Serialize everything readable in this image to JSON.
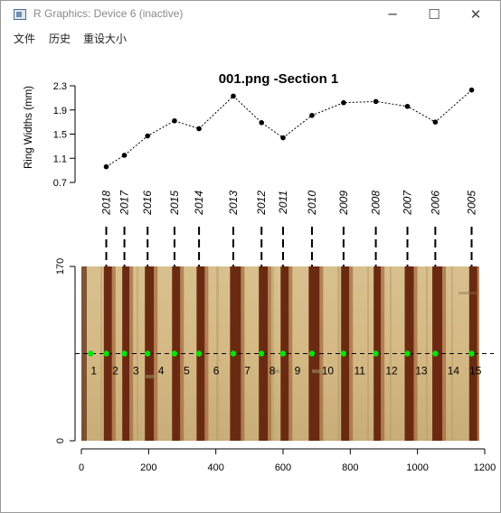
{
  "window": {
    "title": "R Graphics: Device 6 (inactive)",
    "icon": "r-graphics-window-icon",
    "controls": {
      "minimize": "─",
      "maximize": "☐",
      "close": "✕"
    }
  },
  "menu": [
    "文件",
    "历史",
    "重设大小"
  ],
  "chart_data": [
    {
      "type": "line",
      "title": "001.png -Section 1",
      "xlabel": "",
      "ylabel": "Ring Widths (mm)",
      "ylim": [
        0.7,
        2.3
      ],
      "yticks": [
        "0.7",
        "1.1",
        "1.5",
        "1.9",
        "2.3"
      ],
      "line_style": "dotted",
      "x": [
        "2018",
        "2017",
        "2016",
        "2015",
        "2014",
        "2013",
        "2012",
        "2011",
        "2010",
        "2009",
        "2008",
        "2007",
        "2006",
        "2005"
      ],
      "values": [
        0.96,
        1.15,
        1.47,
        1.72,
        1.59,
        2.13,
        1.69,
        1.44,
        1.81,
        2.02,
        2.04,
        1.96,
        1.7,
        2.23
      ],
      "year_labels": [
        "2018",
        "2017",
        "2016",
        "2015",
        "2014",
        "2013",
        "2012",
        "2011",
        "2010",
        "2009",
        "2008",
        "2007",
        "2006",
        "2005"
      ]
    },
    {
      "type": "scatter",
      "xlabel": "",
      "ylabel": "",
      "xlim": [
        0,
        1200
      ],
      "ylim": [
        0,
        170
      ],
      "xticks": [
        "0",
        "200",
        "400",
        "600",
        "800",
        "1000",
        "1200"
      ],
      "yticks": [
        "0",
        "170"
      ],
      "path_y": 85,
      "marker_color": "#00e600",
      "points_x": [
        28,
        74,
        128,
        197,
        277,
        350,
        452,
        536,
        600,
        686,
        780,
        876,
        970,
        1053,
        1161
      ],
      "ring_labels": [
        "1",
        "2",
        "3",
        "4",
        "5",
        "6",
        "7",
        "8",
        "9",
        "10",
        "11",
        "12",
        "13",
        "14",
        "15"
      ],
      "boundary_x": [
        74,
        128,
        197,
        277,
        350,
        452,
        536,
        600,
        686,
        780,
        876,
        970,
        1053,
        1161
      ]
    }
  ]
}
